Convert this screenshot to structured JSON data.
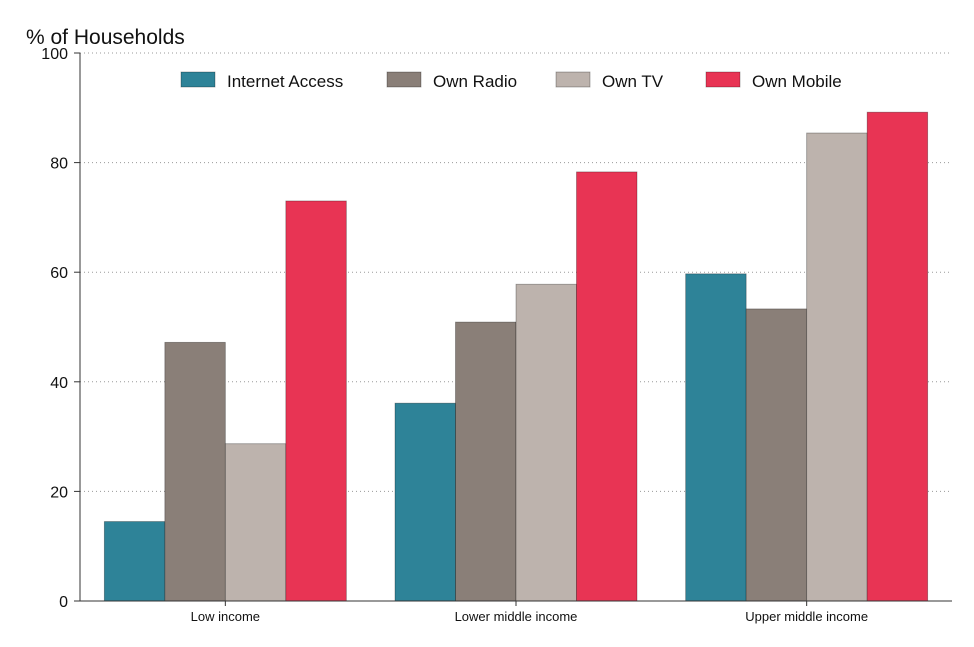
{
  "chart_data": {
    "type": "bar",
    "ylabel": "% of Households",
    "xlabel": "",
    "ylim": [
      0,
      100
    ],
    "yticks": [
      0,
      20,
      40,
      60,
      80,
      100
    ],
    "grid": true,
    "legend_position": "top",
    "categories": [
      "Low income",
      "Lower middle income",
      "Upper middle income"
    ],
    "series": [
      {
        "name": "Internet Access",
        "color": "#2e8398",
        "values": [
          14.5,
          36.1,
          59.7
        ]
      },
      {
        "name": "Own Radio",
        "color": "#8a7f78",
        "values": [
          47.2,
          50.9,
          53.3
        ]
      },
      {
        "name": "Own TV",
        "color": "#bdb3ad",
        "values": [
          28.7,
          57.8,
          85.4
        ]
      },
      {
        "name": "Own Mobile",
        "color": "#e83454",
        "values": [
          73.0,
          78.3,
          89.2
        ]
      }
    ]
  }
}
